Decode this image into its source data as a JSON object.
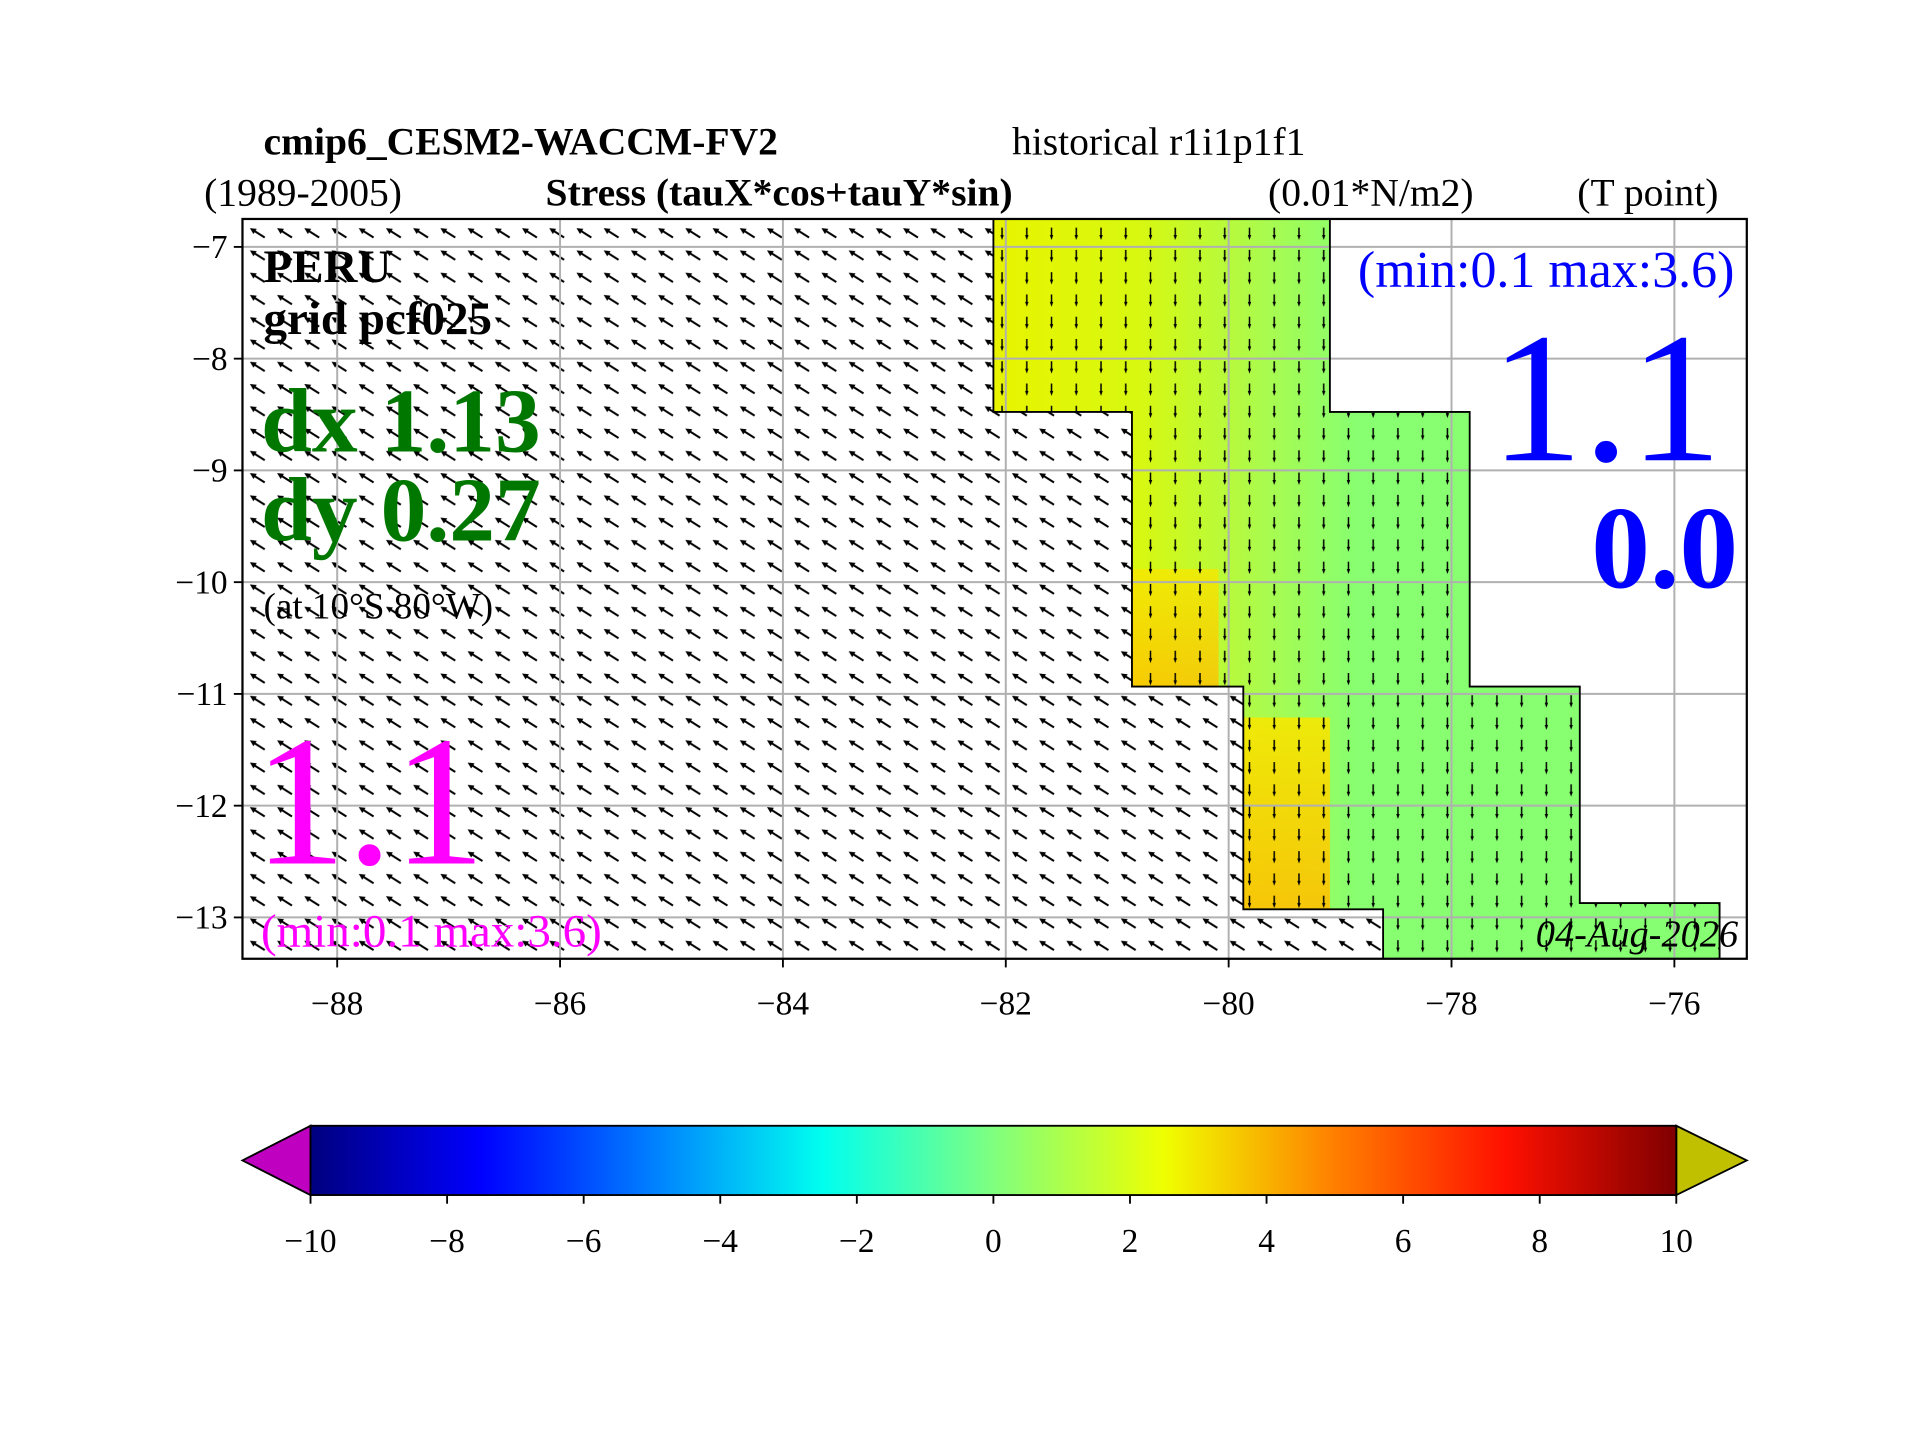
{
  "chart_data": {
    "type": "map",
    "title": "cmip6_CESM2-WACCM-FV2",
    "title_suffix": "historical r1i1p1f1",
    "subtitle_left": "(1989-2005)",
    "subtitle": "Stress (tauX*cos+tauY*sin)",
    "units": "(0.01*N/m2)",
    "grid_point": "(T point)",
    "annotations": {
      "region": "PERU",
      "grid": "grid pcf025",
      "dx": "dx 1.13",
      "dy": "dy 0.27",
      "location": "(at 10°S 80°W)",
      "left_value": "1.1",
      "left_range": "(min:0.1 max:3.6)",
      "right_range": "(min:0.1 max:3.6)",
      "right_value": "1.1",
      "right_value2": "0.0",
      "date": "04-Aug-2026"
    },
    "xlim": [
      -88.85,
      -75.35
    ],
    "ylim": [
      -13.37,
      -6.75
    ],
    "xticks": [
      {
        "value": -88,
        "label": "−88"
      },
      {
        "value": -86,
        "label": "−86"
      },
      {
        "value": -84,
        "label": "−84"
      },
      {
        "value": -82,
        "label": "−82"
      },
      {
        "value": -80,
        "label": "−80"
      },
      {
        "value": -78,
        "label": "−78"
      },
      {
        "value": -76,
        "label": "−76"
      }
    ],
    "yticks": [
      {
        "value": -7,
        "label": "−7"
      },
      {
        "value": -8,
        "label": "−8"
      },
      {
        "value": -9,
        "label": "−9"
      },
      {
        "value": -10,
        "label": "−10"
      },
      {
        "value": -11,
        "label": "−11"
      },
      {
        "value": -12,
        "label": "−12"
      },
      {
        "value": -13,
        "label": "−13"
      }
    ],
    "grid": true,
    "colorbar": {
      "clim": [
        -10,
        10
      ],
      "ticks": [
        {
          "value": -10,
          "label": "−10"
        },
        {
          "value": -8,
          "label": "−8"
        },
        {
          "value": -6,
          "label": "−6"
        },
        {
          "value": -4,
          "label": "−4"
        },
        {
          "value": -2,
          "label": "−2"
        },
        0,
        2,
        4,
        6,
        8,
        10
      ],
      "colors": [
        "#00007f",
        "#0000ff",
        "#007fff",
        "#00ffef",
        "#7fff7f",
        "#efff00",
        "#ff7f00",
        "#ff1000",
        "#7f0000"
      ],
      "under_color": "#c000c0",
      "over_color": "#c0c000"
    }
  }
}
